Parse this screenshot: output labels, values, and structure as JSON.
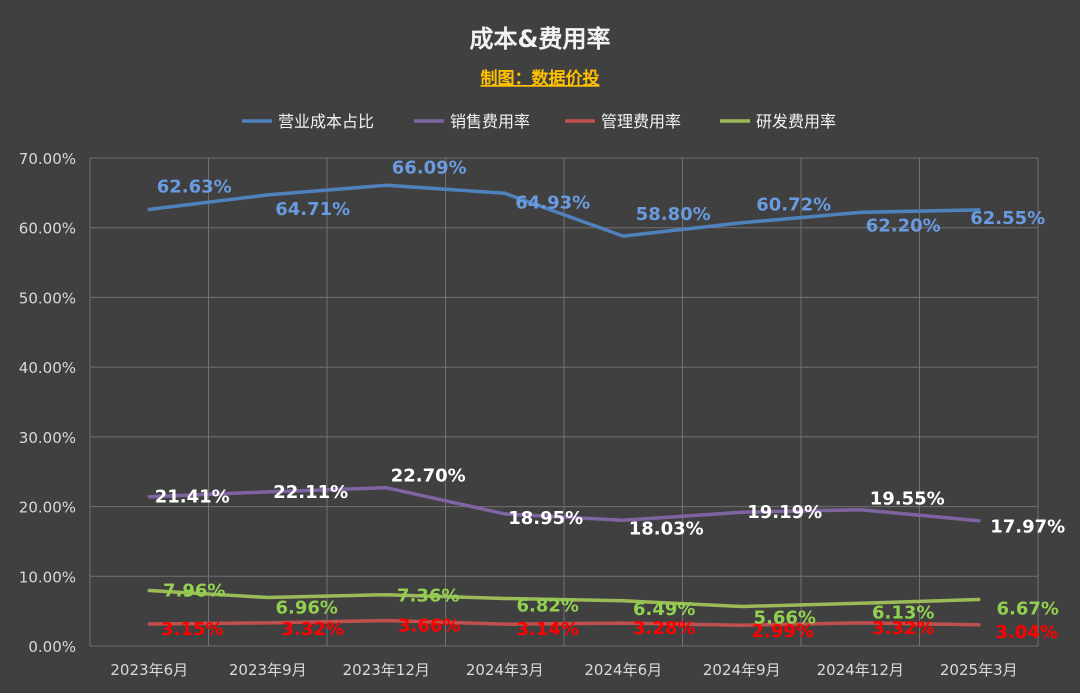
{
  "chart_data": {
    "type": "line",
    "title": "成本&费用率",
    "subtitle": "制图：数据价投",
    "categories": [
      "2023年6月",
      "2023年9月",
      "2023年12月",
      "2024年3月",
      "2024年6月",
      "2024年9月",
      "2024年12月",
      "2025年3月"
    ],
    "ylim": [
      0,
      70
    ],
    "yticks": [
      "0.00%",
      "10.00%",
      "20.00%",
      "30.00%",
      "40.00%",
      "50.00%",
      "60.00%",
      "70.00%"
    ],
    "grid": true,
    "legend_position": "top",
    "series": [
      {
        "name": "营业成本占比",
        "color": "#4f81bd",
        "label_color": "#6a9be0",
        "values": [
          62.63,
          64.71,
          66.09,
          64.93,
          58.8,
          60.72,
          62.2,
          62.55
        ],
        "labels": [
          "62.63%",
          "64.71%",
          "66.09%",
          "64.93%",
          "58.80%",
          "60.72%",
          "62.20%",
          "62.55%"
        ]
      },
      {
        "name": "销售费用率",
        "color": "#8064a2",
        "label_color": "#ffffff",
        "values": [
          21.41,
          22.11,
          22.7,
          18.95,
          18.03,
          19.19,
          19.55,
          17.97
        ],
        "labels": [
          "21.41%",
          "22.11%",
          "22.70%",
          "18.95%",
          "18.03%",
          "19.19%",
          "19.55%",
          "17.97%"
        ]
      },
      {
        "name": "管理费用率",
        "color": "#c0504d",
        "label_color": "#ff0000",
        "values": [
          3.15,
          3.32,
          3.66,
          3.14,
          3.28,
          2.99,
          3.32,
          3.04
        ],
        "labels": [
          "3.15%",
          "3.32%",
          "3.66%",
          "3.14%",
          "3.28%",
          "2.99%",
          "3.32%",
          "3.04%"
        ]
      },
      {
        "name": "研发费用率",
        "color": "#9bbb59",
        "label_color": "#92d050",
        "values": [
          7.96,
          6.96,
          7.36,
          6.82,
          6.49,
          5.66,
          6.13,
          6.67
        ],
        "labels": [
          "7.96%",
          "6.96%",
          "7.36%",
          "6.82%",
          "6.49%",
          "5.66%",
          "6.13%",
          "6.67%"
        ]
      }
    ]
  },
  "colors": {
    "background": "#404040",
    "title": "#f2f2f2",
    "subtitle": "#ffc000",
    "axis_text": "#d9d9d9",
    "grid": "#707070"
  }
}
